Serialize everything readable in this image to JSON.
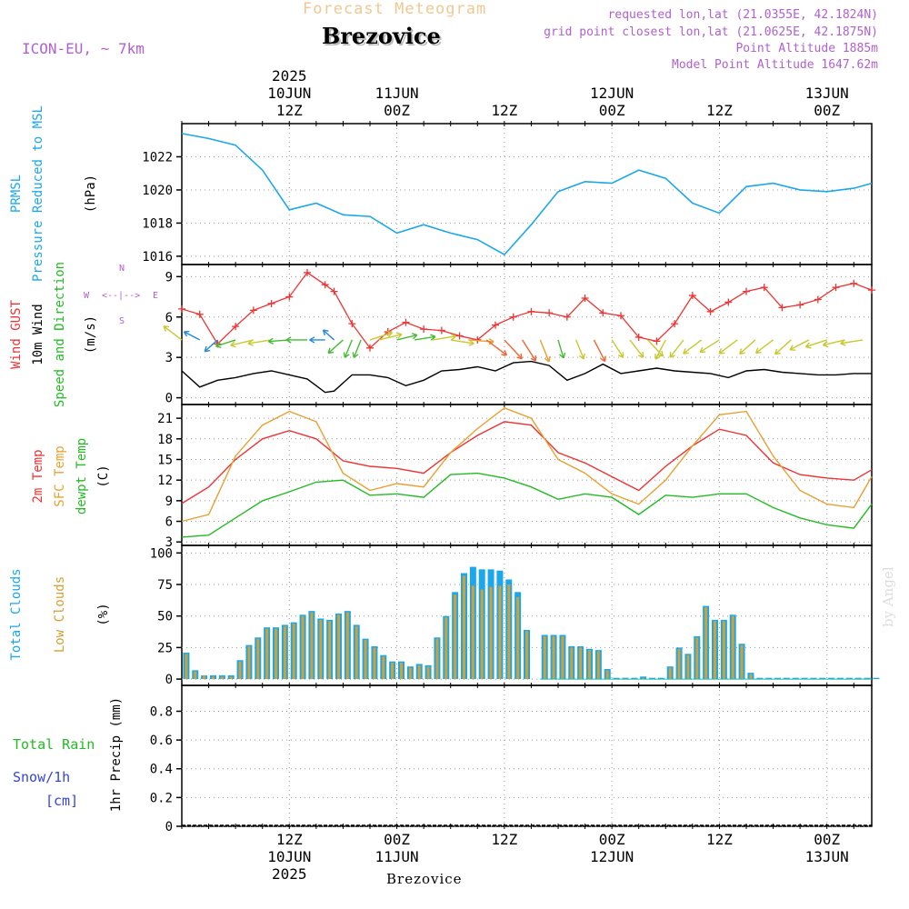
{
  "header": {
    "main_title": "Forecast Meteogram",
    "location": "Brezovice",
    "model": "ICON-EU, ~ 7km",
    "requested": "requested lon,lat (21.0355E, 42.1824N)",
    "grid_point": "grid point closest lon,lat (21.0625E, 42.1875N)",
    "point_altitude": "Point Altitude 1885m",
    "model_altitude": "Model Point Altitude 1647.62m",
    "credit": "by Angel",
    "bottom_location": "Brezovice"
  },
  "time_axis": {
    "top": [
      {
        "lines": [
          "2025",
          "10JUN",
          "12Z"
        ],
        "hour": 12
      },
      {
        "lines": [
          "11JUN",
          "00Z"
        ],
        "hour": 24
      },
      {
        "lines": [
          "12Z"
        ],
        "hour": 36
      },
      {
        "lines": [
          "12JUN",
          "00Z"
        ],
        "hour": 48
      },
      {
        "lines": [
          "12Z"
        ],
        "hour": 60
      },
      {
        "lines": [
          "13JUN",
          "00Z"
        ],
        "hour": 72
      }
    ],
    "bottom": [
      {
        "lines": [
          "12Z",
          "10JUN",
          "2025"
        ],
        "hour": 12
      },
      {
        "lines": [
          "00Z",
          "11JUN"
        ],
        "hour": 24
      },
      {
        "lines": [
          "12Z"
        ],
        "hour": 36
      },
      {
        "lines": [
          "00Z",
          "12JUN"
        ],
        "hour": 48
      },
      {
        "lines": [
          "12Z"
        ],
        "hour": 60
      },
      {
        "lines": [
          "00Z",
          "13JUN"
        ],
        "hour": 72
      }
    ]
  },
  "panel_labels": {
    "pressure": [
      {
        "text": "PRMSL",
        "color": "#1aa7ec"
      },
      {
        "text": "Pressure Reduced to MSL",
        "color": "#1aa7ec"
      },
      {
        "text": "(hPa)",
        "color": "#000000"
      }
    ],
    "wind": [
      {
        "text": "Wind GUST",
        "color": "#ee3333"
      },
      {
        "text": "10m Wind",
        "color": "#000000"
      },
      {
        "text": "Speed and Direction",
        "color": "#22bb22"
      },
      {
        "text": "(m/s)",
        "color": "#000000"
      }
    ],
    "temp": [
      {
        "text": "2m Temp",
        "color": "#ee3333"
      },
      {
        "text": "SFC Temp",
        "color": "#e8a030"
      },
      {
        "text": "dewpt Temp",
        "color": "#22bb22"
      },
      {
        "text": "(C)",
        "color": "#000000"
      }
    ],
    "clouds": [
      {
        "text": "Total Clouds",
        "color": "#1aa7ec"
      },
      {
        "text": "Low Clouds",
        "color": "#d4a030"
      },
      {
        "text": "(%)",
        "color": "#000000"
      }
    ],
    "precip_left": [
      {
        "text": "Total  Rain",
        "color": "#22bb22"
      },
      {
        "text": "Snow/1h",
        "color": "#3344dd"
      },
      {
        "text": "[cm]",
        "color": "#3344dd"
      }
    ],
    "precip_axis": "1hr Precip (mm)",
    "compass": {
      "n": "N",
      "s": "S",
      "w": "W",
      "e": "E"
    }
  },
  "colors": {
    "pressure": "#1aa7ec",
    "gust": "#ee3333",
    "wind": "#000000",
    "temp2m": "#ee3333",
    "sfc": "#e8a030",
    "dew": "#22bb22",
    "total_clouds": "#1aa7ec",
    "low_clouds": "#d4a030",
    "header_title": "#f0c890",
    "meta": "#b060d0"
  },
  "chart_data": [
    {
      "type": "line",
      "name": "pressure",
      "x_hours": [
        0,
        3,
        6,
        9,
        12,
        15,
        18,
        21,
        24,
        27,
        30,
        33,
        36,
        39,
        42,
        45,
        48,
        51,
        54,
        57,
        60,
        63,
        66,
        69,
        72,
        75,
        77
      ],
      "series": [
        {
          "name": "PRMSL",
          "values": [
            1023.4,
            1023.1,
            1022.7,
            1021.2,
            1018.8,
            1019.2,
            1018.5,
            1018.4,
            1017.4,
            1017.9,
            1017.4,
            1017.0,
            1016.1,
            1017.9,
            1019.9,
            1020.5,
            1020.4,
            1021.2,
            1020.7,
            1019.2,
            1018.6,
            1020.2,
            1020.4,
            1020.0,
            1019.9,
            1020.1,
            1020.4
          ]
        }
      ],
      "y_ticks": [
        1016,
        1018,
        1020,
        1022
      ],
      "ylim": [
        1015.5,
        1024.0
      ]
    },
    {
      "type": "line",
      "name": "wind",
      "x_hours": [
        0,
        2,
        4,
        6,
        8,
        10,
        12,
        14,
        16,
        17,
        19,
        21,
        23,
        25,
        27,
        29,
        31,
        33,
        35,
        37,
        39,
        41,
        43,
        45,
        47,
        49,
        51,
        53,
        55,
        57,
        59,
        61,
        63,
        65,
        67,
        69,
        71,
        73,
        75,
        77
      ],
      "series": [
        {
          "name": "Wind GUST",
          "values": [
            6.6,
            6.2,
            4.0,
            5.3,
            6.5,
            7.0,
            7.5,
            9.3,
            8.4,
            7.9,
            5.5,
            3.7,
            4.9,
            5.6,
            5.1,
            5.0,
            4.6,
            4.3,
            5.4,
            6.0,
            6.4,
            6.3,
            6.0,
            7.4,
            6.3,
            6.1,
            4.5,
            4.2,
            5.5,
            7.6,
            6.4,
            7.1,
            7.9,
            8.2,
            6.7,
            6.9,
            7.3,
            8.2,
            8.5,
            8.0
          ]
        },
        {
          "name": "10m Wind",
          "values": [
            2.0,
            0.8,
            1.3,
            1.5,
            1.8,
            2.0,
            1.7,
            1.4,
            0.4,
            0.5,
            1.7,
            1.7,
            1.5,
            0.9,
            1.3,
            2.0,
            2.1,
            2.3,
            2.0,
            2.6,
            2.7,
            2.4,
            1.3,
            1.8,
            2.5,
            1.8,
            2.0,
            2.2,
            2.0,
            1.9,
            1.8,
            1.5,
            2.0,
            2.1,
            1.9,
            1.8,
            1.7,
            1.7,
            1.8,
            1.8
          ]
        }
      ],
      "y_ticks": [
        0,
        3,
        6,
        9
      ],
      "ylim": [
        -0.5,
        9.9
      ]
    },
    {
      "type": "line",
      "name": "temperature",
      "x_hours": [
        0,
        3,
        6,
        9,
        12,
        15,
        18,
        21,
        24,
        27,
        30,
        33,
        36,
        39,
        42,
        45,
        48,
        51,
        54,
        57,
        60,
        63,
        66,
        69,
        72,
        75,
        77
      ],
      "series": [
        {
          "name": "2m Temp",
          "values": [
            8.6,
            11.0,
            15.0,
            18.0,
            19.2,
            18.0,
            14.8,
            14.0,
            13.7,
            13.0,
            16.0,
            18.5,
            20.5,
            20.0,
            16.0,
            14.5,
            12.5,
            10.5,
            14.0,
            17.0,
            19.4,
            18.5,
            14.5,
            12.8,
            12.3,
            12.0,
            13.5
          ]
        },
        {
          "name": "SFC Temp",
          "values": [
            6.0,
            7.0,
            15.5,
            20.0,
            22.0,
            20.5,
            13.0,
            10.5,
            11.5,
            11.0,
            16.0,
            19.5,
            22.5,
            21.0,
            15.0,
            13.0,
            10.0,
            8.5,
            12.0,
            17.0,
            21.5,
            22.0,
            15.5,
            10.5,
            8.5,
            8.0,
            12.5
          ]
        },
        {
          "name": "dewpt Temp",
          "values": [
            3.7,
            4.0,
            6.5,
            9.0,
            10.3,
            11.7,
            12.0,
            9.8,
            10.0,
            9.5,
            12.8,
            13.0,
            12.3,
            11.0,
            9.2,
            10.0,
            9.5,
            7.0,
            9.8,
            9.5,
            10.0,
            10.0,
            8.0,
            6.5,
            5.5,
            5.0,
            8.5
          ]
        }
      ],
      "y_ticks": [
        3,
        6,
        9,
        12,
        15,
        18,
        21
      ],
      "ylim": [
        2.5,
        23.0
      ]
    },
    {
      "type": "bar",
      "name": "clouds",
      "x_hours_start": 0,
      "x_hours_step": 1,
      "series": [
        {
          "name": "Total Clouds",
          "values": [
            21,
            7,
            3,
            3,
            3,
            3,
            15,
            27,
            33,
            41,
            41,
            43,
            45,
            51,
            54,
            48,
            47,
            52,
            54,
            43,
            32,
            26,
            19,
            14,
            14,
            10,
            12,
            11,
            33,
            50,
            69,
            84,
            89,
            87,
            87,
            86,
            79,
            69,
            39,
            0,
            35,
            35,
            35,
            26,
            26,
            24,
            23,
            8,
            1,
            1,
            1,
            2,
            1,
            1,
            10,
            25,
            20,
            34,
            58,
            47,
            47,
            51,
            28,
            5,
            1,
            1,
            1,
            1,
            1,
            1,
            1,
            1,
            1,
            1,
            1,
            1,
            1,
            1
          ]
        },
        {
          "name": "Low Clouds",
          "values": [
            20,
            6,
            3,
            2,
            2,
            2,
            14,
            26,
            32,
            40,
            40,
            42,
            44,
            50,
            53,
            47,
            46,
            51,
            53,
            42,
            31,
            25,
            18,
            13,
            13,
            9,
            11,
            10,
            32,
            49,
            67,
            82,
            74,
            71,
            73,
            74,
            75,
            65,
            38,
            0,
            34,
            34,
            34,
            25,
            25,
            23,
            22,
            7,
            0,
            0,
            0,
            1,
            0,
            0,
            9,
            24,
            19,
            33,
            57,
            46,
            46,
            50,
            27,
            4,
            0,
            0,
            0,
            0,
            0,
            0,
            0,
            0,
            0,
            0,
            0,
            0,
            0,
            0
          ]
        }
      ],
      "y_ticks": [
        0,
        25,
        50,
        75,
        100
      ],
      "ylim": [
        -5,
        106
      ]
    },
    {
      "type": "bar",
      "name": "precipitation",
      "series": [
        {
          "name": "1hr Precip",
          "values": [
            0
          ]
        }
      ],
      "y_ticks": [
        0,
        0.2,
        0.4,
        0.6,
        0.8
      ],
      "ylim": [
        0,
        0.98
      ]
    }
  ],
  "wind_barbs": {
    "x_hours": [
      0,
      2,
      4,
      6,
      8,
      10,
      12,
      14,
      16,
      17,
      18,
      19,
      20,
      21,
      22,
      24,
      26,
      28,
      30,
      32,
      34,
      36,
      38,
      40,
      42,
      44,
      46,
      48,
      50,
      52,
      54,
      56,
      58,
      60,
      62,
      64,
      66,
      68,
      70,
      72,
      74,
      76
    ],
    "direction_deg": [
      310,
      300,
      225,
      250,
      255,
      260,
      265,
      270,
      270,
      315,
      225,
      200,
      200,
      70,
      75,
      75,
      80,
      80,
      100,
      95,
      130,
      140,
      150,
      160,
      165,
      160,
      155,
      150,
      145,
      140,
      205,
      215,
      230,
      235,
      230,
      225,
      230,
      225,
      240,
      250,
      255,
      260
    ],
    "speed_ms": [
      2,
      1,
      1,
      1.5,
      2,
      2,
      1.5,
      1.5,
      0.5,
      0.5,
      1.5,
      1.5,
      1.5,
      2,
      2,
      1.5,
      1.5,
      2,
      2,
      2.3,
      2.5,
      2.7,
      2.6,
      2.4,
      1.5,
      1.8,
      2.5,
      1.8,
      2,
      2,
      2,
      2,
      2,
      2,
      2,
      1.7,
      1.8,
      1.8,
      1.7,
      1.8,
      1.8,
      1.8
    ]
  }
}
